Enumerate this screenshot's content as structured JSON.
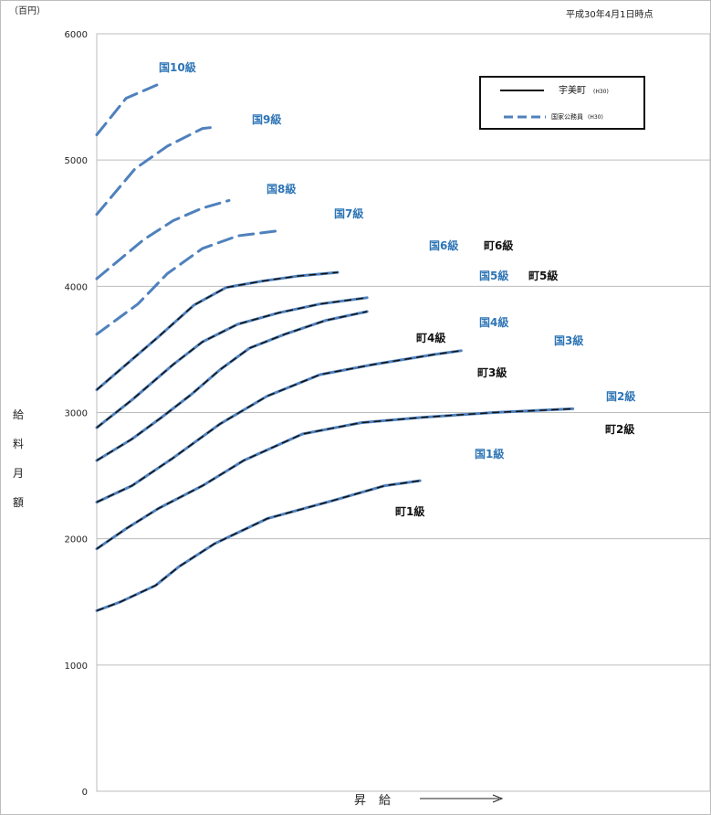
{
  "chart_data": {
    "type": "line",
    "unit_label": "（百円）",
    "as_of_label": "平成30年4月1日時点",
    "ylabel": "給料月額",
    "xlabel": "昇給",
    "ylim": [
      0,
      6000
    ],
    "y_ticks": [
      0,
      1000,
      2000,
      3000,
      4000,
      5000,
      6000
    ],
    "grid": true,
    "legend_position": "top-right",
    "legend": [
      {
        "label": "宇美町",
        "suffix": "(H30)",
        "style": "solid",
        "color": "#111111"
      },
      {
        "label": "国家公務員",
        "suffix": "(H30)",
        "style": "dashed",
        "color": "#4f81bd"
      }
    ],
    "x_range": [
      0,
      100
    ],
    "kuni_series": [
      {
        "name": "国10級",
        "points": [
          [
            0,
            5200
          ],
          [
            10,
            5490
          ],
          [
            21,
            5600
          ]
        ]
      },
      {
        "name": "国9級",
        "points": [
          [
            0,
            4570
          ],
          [
            13,
            4930
          ],
          [
            24,
            5110
          ],
          [
            36,
            5250
          ],
          [
            40,
            5260
          ]
        ]
      },
      {
        "name": "国8級",
        "points": [
          [
            0,
            4060
          ],
          [
            16,
            4370
          ],
          [
            26,
            4520
          ],
          [
            36,
            4620
          ],
          [
            45,
            4680
          ]
        ]
      },
      {
        "name": "国7級",
        "points": [
          [
            0,
            3620
          ],
          [
            14,
            3860
          ],
          [
            24,
            4100
          ],
          [
            36,
            4300
          ],
          [
            48,
            4400
          ],
          [
            62,
            4440
          ]
        ]
      },
      {
        "name": "国6級",
        "points": [
          [
            0,
            3180
          ],
          [
            12,
            3420
          ],
          [
            21,
            3600
          ],
          [
            33,
            3850
          ],
          [
            44,
            3990
          ],
          [
            56,
            4040
          ],
          [
            68,
            4080
          ],
          [
            82,
            4110
          ]
        ]
      },
      {
        "name": "国5級",
        "points": [
          [
            0,
            2880
          ],
          [
            12,
            3100
          ],
          [
            26,
            3380
          ],
          [
            36,
            3560
          ],
          [
            48,
            3700
          ],
          [
            62,
            3790
          ],
          [
            76,
            3860
          ],
          [
            92,
            3910
          ]
        ]
      },
      {
        "name": "国4級",
        "points": [
          [
            0,
            2620
          ],
          [
            12,
            2790
          ],
          [
            22,
            2960
          ],
          [
            32,
            3140
          ],
          [
            42,
            3340
          ],
          [
            52,
            3510
          ],
          [
            64,
            3620
          ],
          [
            78,
            3730
          ],
          [
            92,
            3800
          ]
        ]
      },
      {
        "name": "国3級",
        "points": [
          [
            0,
            2290
          ],
          [
            12,
            2420
          ],
          [
            26,
            2640
          ],
          [
            42,
            2910
          ],
          [
            58,
            3130
          ],
          [
            76,
            3300
          ],
          [
            94,
            3380
          ],
          [
            115,
            3460
          ],
          [
            124,
            3490
          ]
        ]
      },
      {
        "name": "国2級",
        "points": [
          [
            0,
            1920
          ],
          [
            10,
            2080
          ],
          [
            21,
            2240
          ],
          [
            36,
            2420
          ],
          [
            50,
            2620
          ],
          [
            70,
            2830
          ],
          [
            90,
            2920
          ],
          [
            110,
            2960
          ],
          [
            135,
            3000
          ],
          [
            162,
            3030
          ]
        ]
      },
      {
        "name": "国1級",
        "points": [
          [
            0,
            1430
          ],
          [
            8,
            1500
          ],
          [
            20,
            1630
          ],
          [
            28,
            1780
          ],
          [
            40,
            1960
          ],
          [
            58,
            2160
          ],
          [
            80,
            2300
          ],
          [
            98,
            2420
          ],
          [
            110,
            2460
          ]
        ]
      }
    ],
    "cho_series": [
      {
        "name": "町1級",
        "points": [
          [
            0,
            1430
          ],
          [
            8,
            1500
          ],
          [
            20,
            1630
          ],
          [
            28,
            1780
          ],
          [
            40,
            1960
          ],
          [
            58,
            2160
          ],
          [
            80,
            2300
          ],
          [
            98,
            2420
          ],
          [
            110,
            2460
          ]
        ]
      },
      {
        "name": "町2級",
        "points": [
          [
            0,
            1920
          ],
          [
            10,
            2080
          ],
          [
            21,
            2240
          ],
          [
            36,
            2420
          ],
          [
            50,
            2620
          ],
          [
            70,
            2830
          ],
          [
            90,
            2920
          ],
          [
            110,
            2960
          ],
          [
            135,
            3000
          ],
          [
            162,
            3030
          ]
        ]
      },
      {
        "name": "町3級",
        "points": [
          [
            0,
            2290
          ],
          [
            12,
            2420
          ],
          [
            26,
            2640
          ],
          [
            42,
            2910
          ],
          [
            58,
            3130
          ],
          [
            76,
            3300
          ],
          [
            94,
            3380
          ],
          [
            115,
            3460
          ],
          [
            124,
            3490
          ]
        ]
      },
      {
        "name": "町4級",
        "points": [
          [
            0,
            2620
          ],
          [
            12,
            2790
          ],
          [
            22,
            2960
          ],
          [
            32,
            3140
          ],
          [
            42,
            3340
          ],
          [
            52,
            3510
          ],
          [
            64,
            3620
          ],
          [
            78,
            3730
          ],
          [
            92,
            3800
          ]
        ]
      },
      {
        "name": "町5級",
        "points": [
          [
            0,
            2880
          ],
          [
            12,
            3100
          ],
          [
            26,
            3380
          ],
          [
            36,
            3560
          ],
          [
            48,
            3700
          ],
          [
            62,
            3790
          ],
          [
            76,
            3860
          ],
          [
            92,
            3910
          ]
        ]
      },
      {
        "name": "町6級",
        "points": [
          [
            0,
            3180
          ],
          [
            12,
            3420
          ],
          [
            21,
            3600
          ],
          [
            33,
            3850
          ],
          [
            44,
            3990
          ],
          [
            56,
            4040
          ],
          [
            68,
            4080
          ],
          [
            82,
            4110
          ]
        ]
      }
    ],
    "labels": {
      "kuni": [
        "国10級",
        "国9級",
        "国8級",
        "国7級",
        "国6級",
        "国5級",
        "国4級",
        "国3級",
        "国2級",
        "国1級"
      ],
      "cho": [
        "町6級",
        "町5級",
        "町4級",
        "町3級",
        "町2級",
        "町1級"
      ]
    }
  }
}
